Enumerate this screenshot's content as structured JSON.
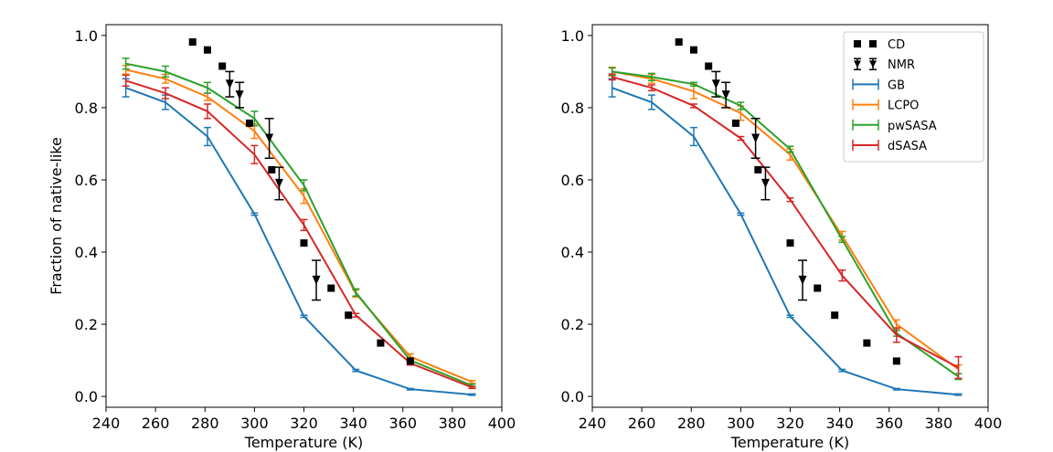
{
  "chart_data": [
    {
      "type": "line",
      "title": "",
      "xlabel": "Temperature (K)",
      "ylabel": "Fraction of native-like",
      "xlim": [
        240,
        400
      ],
      "ylim": [
        -0.03,
        1.03
      ],
      "xticks": [
        240,
        260,
        280,
        300,
        320,
        340,
        360,
        380,
        400
      ],
      "xtick_labels": [
        "240",
        "260",
        "280",
        "300",
        "320",
        "340",
        "360",
        "380",
        "400"
      ],
      "yticks": [
        0.0,
        0.2,
        0.4,
        0.6,
        0.8,
        1.0
      ],
      "ytick_labels": [
        "0.0",
        "0.2",
        "0.4",
        "0.6",
        "0.8",
        "1.0"
      ],
      "legend": false,
      "series": [
        {
          "name": "GB",
          "color": "#1f77b4",
          "x": [
            248,
            264,
            281,
            300,
            320,
            341,
            363,
            388
          ],
          "values": [
            0.855,
            0.815,
            0.72,
            0.505,
            0.222,
            0.072,
            0.02,
            0.005
          ],
          "err": [
            0.025,
            0.02,
            0.025,
            0.003,
            0.003,
            0.003,
            0.002,
            0.002
          ]
        },
        {
          "name": "LCPO",
          "color": "#ff7f0e",
          "x": [
            248,
            264,
            281,
            300,
            320,
            341,
            363,
            388
          ],
          "values": [
            0.905,
            0.88,
            0.83,
            0.735,
            0.555,
            0.285,
            0.11,
            0.04
          ],
          "err": [
            0.012,
            0.012,
            0.01,
            0.02,
            0.02,
            0.01,
            0.008,
            0.004
          ]
        },
        {
          "name": "pwSASA",
          "color": "#2ca02c",
          "x": [
            248,
            264,
            281,
            300,
            320,
            341,
            363,
            388
          ],
          "values": [
            0.922,
            0.9,
            0.855,
            0.77,
            0.585,
            0.288,
            0.1,
            0.03
          ],
          "err": [
            0.015,
            0.015,
            0.015,
            0.02,
            0.015,
            0.01,
            0.006,
            0.004
          ]
        },
        {
          "name": "dSASA",
          "color": "#d62728",
          "x": [
            248,
            264,
            281,
            300,
            320,
            341,
            363,
            388
          ],
          "values": [
            0.875,
            0.84,
            0.79,
            0.67,
            0.475,
            0.225,
            0.092,
            0.025
          ],
          "err": [
            0.015,
            0.015,
            0.02,
            0.025,
            0.015,
            0.005,
            0.005,
            0.003
          ]
        }
      ],
      "markers": [
        {
          "name": "CD",
          "color": "#000000",
          "x": [
            275,
            281,
            287,
            298,
            307,
            320,
            331,
            338,
            351,
            363
          ],
          "values": [
            0.982,
            0.96,
            0.915,
            0.757,
            0.628,
            0.425,
            0.3,
            0.225,
            0.148,
            0.098
          ]
        },
        {
          "name": "NMR",
          "color": "#000000",
          "x": [
            290,
            294,
            306,
            310,
            325
          ],
          "values": [
            0.865,
            0.835,
            0.715,
            0.59,
            0.322
          ],
          "err": [
            0.035,
            0.035,
            0.055,
            0.045,
            0.055
          ]
        }
      ]
    },
    {
      "type": "line",
      "title": "",
      "xlabel": "Temperature (K)",
      "ylabel": "",
      "xlim": [
        240,
        400
      ],
      "ylim": [
        -0.03,
        1.03
      ],
      "xticks": [
        240,
        260,
        280,
        300,
        320,
        340,
        360,
        380,
        400
      ],
      "xtick_labels": [
        "240",
        "260",
        "280",
        "300",
        "320",
        "340",
        "360",
        "380",
        "400"
      ],
      "yticks": [
        0.0,
        0.2,
        0.4,
        0.6,
        0.8,
        1.0
      ],
      "ytick_labels": [
        "0.0",
        "0.2",
        "0.4",
        "0.6",
        "0.8",
        "1.0"
      ],
      "legend": true,
      "legend_position": "top-right",
      "series": [
        {
          "name": "GB",
          "color": "#1f77b4",
          "x": [
            248,
            264,
            281,
            300,
            320,
            341,
            363,
            388
          ],
          "values": [
            0.855,
            0.815,
            0.72,
            0.505,
            0.222,
            0.072,
            0.02,
            0.005
          ],
          "err": [
            0.025,
            0.02,
            0.025,
            0.003,
            0.003,
            0.003,
            0.002,
            0.002
          ]
        },
        {
          "name": "LCPO",
          "color": "#ff7f0e",
          "x": [
            248,
            264,
            281,
            300,
            320,
            341,
            363,
            388
          ],
          "values": [
            0.9,
            0.88,
            0.845,
            0.785,
            0.67,
            0.445,
            0.2,
            0.075
          ],
          "err": [
            0.012,
            0.012,
            0.02,
            0.02,
            0.015,
            0.012,
            0.012,
            0.012
          ]
        },
        {
          "name": "pwSASA",
          "color": "#2ca02c",
          "x": [
            248,
            264,
            281,
            300,
            320,
            341,
            363,
            388
          ],
          "values": [
            0.9,
            0.885,
            0.865,
            0.805,
            0.685,
            0.435,
            0.175,
            0.055
          ],
          "err": [
            0.01,
            0.01,
            0.005,
            0.01,
            0.008,
            0.008,
            0.008,
            0.008
          ]
        },
        {
          "name": "dSASA",
          "color": "#d62728",
          "x": [
            248,
            264,
            281,
            300,
            320,
            341,
            363,
            388
          ],
          "values": [
            0.885,
            0.855,
            0.805,
            0.715,
            0.545,
            0.335,
            0.17,
            0.08
          ],
          "err": [
            0.008,
            0.008,
            0.005,
            0.005,
            0.005,
            0.015,
            0.02,
            0.03
          ]
        }
      ],
      "markers": [
        {
          "name": "CD",
          "color": "#000000",
          "x": [
            275,
            281,
            287,
            298,
            307,
            320,
            331,
            338,
            351,
            363
          ],
          "values": [
            0.982,
            0.96,
            0.915,
            0.757,
            0.628,
            0.425,
            0.3,
            0.225,
            0.148,
            0.098
          ]
        },
        {
          "name": "NMR",
          "color": "#000000",
          "x": [
            290,
            294,
            306,
            310,
            325
          ],
          "values": [
            0.865,
            0.835,
            0.715,
            0.59,
            0.322
          ],
          "err": [
            0.035,
            0.035,
            0.055,
            0.045,
            0.055
          ]
        }
      ]
    }
  ]
}
